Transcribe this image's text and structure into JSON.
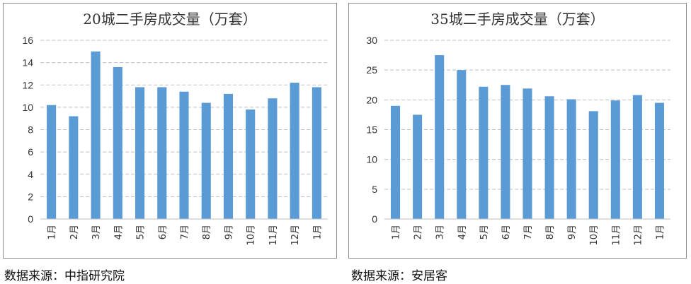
{
  "chart_data": [
    {
      "type": "bar",
      "title": "20城二手房成交量（万套）",
      "categories": [
        "1月",
        "2月",
        "3月",
        "4月",
        "5月",
        "6月",
        "7月",
        "8月",
        "9月",
        "10月",
        "11月",
        "12月",
        "1月"
      ],
      "values": [
        10.2,
        9.2,
        15.0,
        13.6,
        11.8,
        11.8,
        11.4,
        10.4,
        11.2,
        9.8,
        10.8,
        12.2,
        11.8
      ],
      "yticks": [
        "0",
        "2",
        "4",
        "6",
        "8",
        "10",
        "12",
        "14",
        "16"
      ],
      "ylim": [
        0,
        16
      ],
      "grid": true,
      "bar_color": "#5b9bd5",
      "source": "数据来源：中指研究院"
    },
    {
      "type": "bar",
      "title": "35城二手房成交量（万套）",
      "categories": [
        "1月",
        "2月",
        "3月",
        "4月",
        "5月",
        "6月",
        "7月",
        "8月",
        "9月",
        "10月",
        "11月",
        "12月",
        "1月"
      ],
      "values": [
        19.0,
        17.5,
        27.5,
        25.0,
        22.2,
        22.5,
        21.9,
        20.6,
        20.1,
        18.1,
        19.9,
        20.8,
        19.5
      ],
      "yticks": [
        "0",
        "5",
        "10",
        "15",
        "20",
        "25",
        "30"
      ],
      "ylim": [
        0,
        30
      ],
      "grid": true,
      "bar_color": "#5b9bd5",
      "source": "数据来源：安居客"
    }
  ]
}
